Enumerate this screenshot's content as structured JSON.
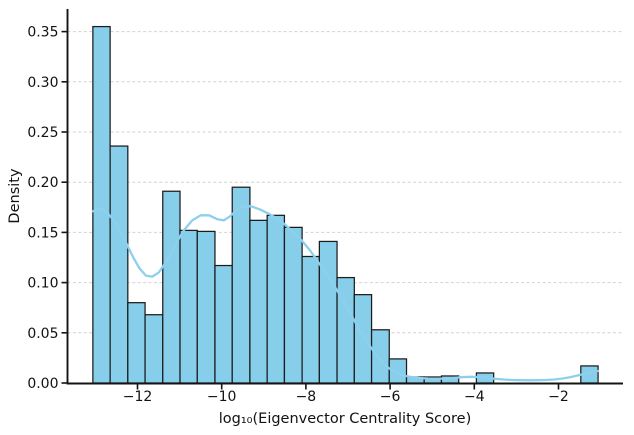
{
  "figure": {
    "background": "#ffffff"
  },
  "chart_data": {
    "type": "bar",
    "subtype": "histogram_with_kde",
    "title": "",
    "xlabel": "log₁₀(Eigenvector Centrality Score)",
    "ylabel": "Density",
    "xlim": [
      -13.67,
      -0.47
    ],
    "ylim": [
      0,
      0.3725
    ],
    "x_ticks": [
      -12,
      -10,
      -8,
      -6,
      -4,
      -2
    ],
    "x_tick_labels": [
      "−12",
      "−10",
      "−8",
      "−6",
      "−4",
      "−2"
    ],
    "y_ticks": [
      0.0,
      0.05,
      0.1,
      0.15,
      0.2,
      0.25,
      0.3,
      0.35
    ],
    "y_tick_labels": [
      "0.00",
      "0.05",
      "0.10",
      "0.15",
      "0.20",
      "0.25",
      "0.30",
      "0.35"
    ],
    "grid": "horizontal-dashed",
    "legend": "none",
    "bins": {
      "edges": [
        -13.06,
        -12.65,
        -12.23,
        -11.82,
        -11.4,
        -10.99,
        -10.58,
        -10.16,
        -9.75,
        -9.33,
        -8.92,
        -8.51,
        -8.09,
        -7.68,
        -7.26,
        -6.85,
        -6.44,
        -6.02,
        -5.61,
        -5.19,
        -4.78,
        -4.37,
        -3.95,
        -3.54,
        -3.12,
        -2.71,
        -2.3,
        -1.88,
        -1.47,
        -1.06,
        -0.64
      ],
      "densities": [
        0.355,
        0.236,
        0.08,
        0.068,
        0.191,
        0.152,
        0.151,
        0.117,
        0.195,
        0.162,
        0.167,
        0.155,
        0.126,
        0.141,
        0.105,
        0.088,
        0.053,
        0.024,
        0.006,
        0.006,
        0.007,
        0.0,
        0.01,
        0.0,
        0.0,
        0.0,
        0.0,
        0.0,
        0.017,
        0.0
      ]
    },
    "kde": {
      "points": [
        [
          -13.06,
          0.171
        ],
        [
          -12.9,
          0.174
        ],
        [
          -12.7,
          0.169
        ],
        [
          -12.5,
          0.158
        ],
        [
          -12.3,
          0.142
        ],
        [
          -12.1,
          0.125
        ],
        [
          -11.95,
          0.114
        ],
        [
          -11.8,
          0.107
        ],
        [
          -11.65,
          0.106
        ],
        [
          -11.5,
          0.11
        ],
        [
          -11.3,
          0.122
        ],
        [
          -11.1,
          0.138
        ],
        [
          -10.9,
          0.152
        ],
        [
          -10.7,
          0.162
        ],
        [
          -10.5,
          0.167
        ],
        [
          -10.3,
          0.167
        ],
        [
          -10.1,
          0.163
        ],
        [
          -9.95,
          0.162
        ],
        [
          -9.8,
          0.166
        ],
        [
          -9.6,
          0.174
        ],
        [
          -9.45,
          0.176
        ],
        [
          -9.3,
          0.176
        ],
        [
          -9.1,
          0.173
        ],
        [
          -8.9,
          0.169
        ],
        [
          -8.7,
          0.164
        ],
        [
          -8.5,
          0.158
        ],
        [
          -8.3,
          0.15
        ],
        [
          -8.1,
          0.142
        ],
        [
          -7.9,
          0.132
        ],
        [
          -7.7,
          0.12
        ],
        [
          -7.5,
          0.108
        ],
        [
          -7.3,
          0.095
        ],
        [
          -7.1,
          0.081
        ],
        [
          -6.9,
          0.066
        ],
        [
          -6.7,
          0.051
        ],
        [
          -6.5,
          0.038
        ],
        [
          -6.3,
          0.026
        ],
        [
          -6.1,
          0.017
        ],
        [
          -5.9,
          0.011
        ],
        [
          -5.7,
          0.0075
        ],
        [
          -5.5,
          0.006
        ],
        [
          -5.3,
          0.005
        ],
        [
          -5.1,
          0.0045
        ],
        [
          -4.9,
          0.0043
        ],
        [
          -4.7,
          0.0045
        ],
        [
          -4.5,
          0.005
        ],
        [
          -4.3,
          0.0058
        ],
        [
          -4.1,
          0.0062
        ],
        [
          -3.9,
          0.006
        ],
        [
          -3.7,
          0.0052
        ],
        [
          -3.5,
          0.0042
        ],
        [
          -3.3,
          0.0035
        ],
        [
          -3.1,
          0.003
        ],
        [
          -2.9,
          0.0028
        ],
        [
          -2.7,
          0.0027
        ],
        [
          -2.5,
          0.0028
        ],
        [
          -2.3,
          0.003
        ],
        [
          -2.1,
          0.0035
        ],
        [
          -1.9,
          0.0045
        ],
        [
          -1.7,
          0.006
        ],
        [
          -1.5,
          0.008
        ],
        [
          -1.3,
          0.01
        ],
        [
          -1.15,
          0.0115
        ],
        [
          -1.06,
          0.012
        ]
      ]
    },
    "colors": {
      "bar_fill": "#87CEEB",
      "bar_edge": "#1c1c1c",
      "kde_line": "#8DD0EE",
      "grid": "#d2d2d2",
      "axis": "#141414",
      "text": "#121212"
    }
  }
}
